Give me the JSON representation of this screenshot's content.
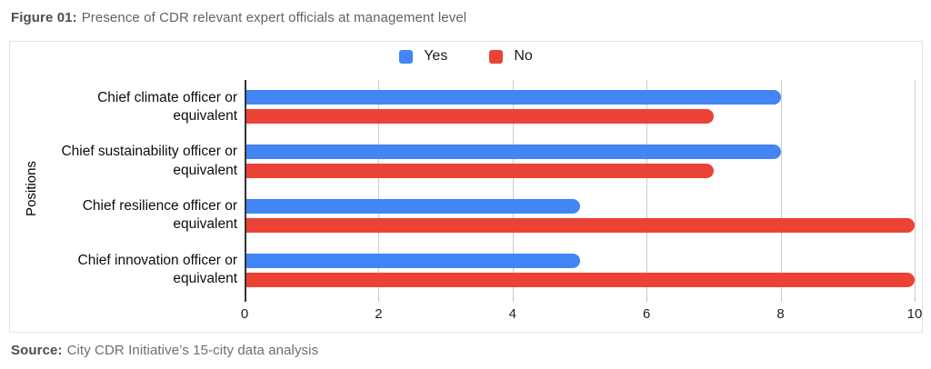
{
  "figure": {
    "label": "Figure 01:",
    "title": "Presence of CDR relevant expert officials at management level"
  },
  "source": {
    "label": "Source:",
    "text": "City CDR Initiative’s 15-city data analysis"
  },
  "chart_data": {
    "type": "bar",
    "orientation": "horizontal",
    "title": "Presence of CDR relevant expert officials at management level",
    "categories": [
      "Chief climate officer or equivalent",
      "Chief sustainability officer or equivalent",
      "Chief resilience officer or equivalent",
      "Chief innovation officer or equivalent"
    ],
    "series": [
      {
        "name": "Yes",
        "color": "#4285F4",
        "values": [
          8,
          8,
          5,
          5
        ]
      },
      {
        "name": "No",
        "color": "#EA4335",
        "values": [
          7,
          7,
          10,
          10
        ]
      }
    ],
    "xlabel": "",
    "ylabel": "Positions",
    "xlim": [
      0,
      10
    ],
    "xticks": [
      0,
      2,
      4,
      6,
      8,
      10
    ],
    "grid": true,
    "legend_position": "top"
  }
}
